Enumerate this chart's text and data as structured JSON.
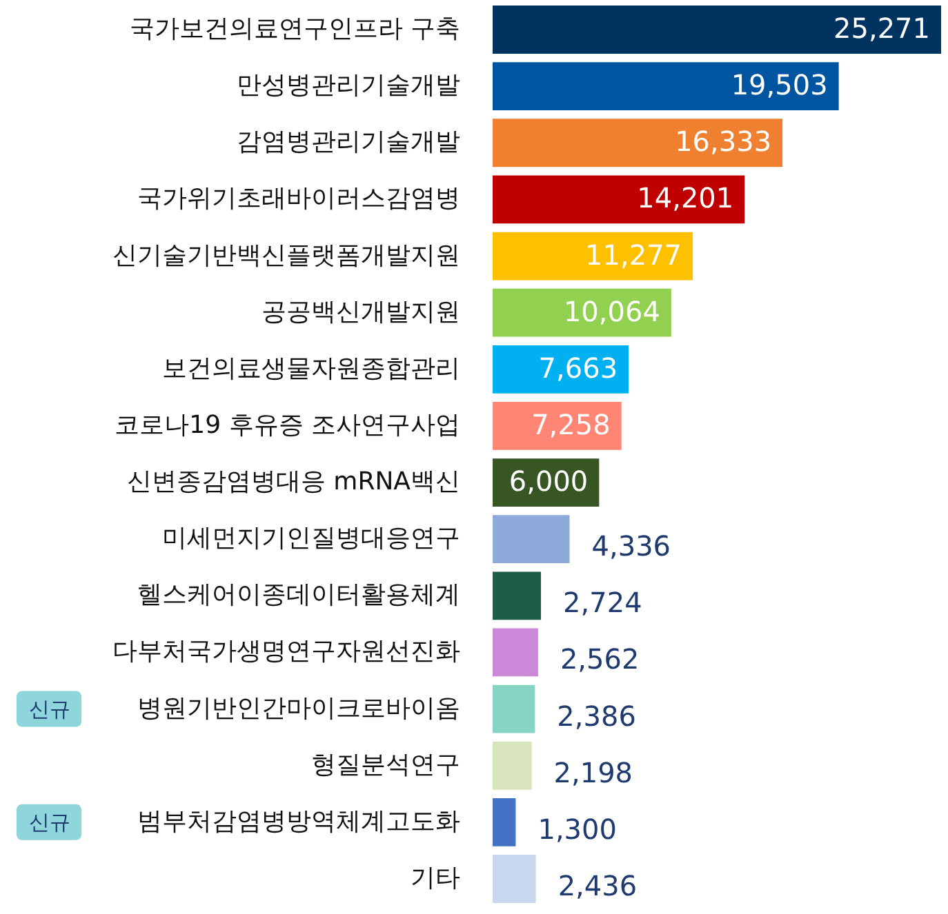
{
  "chart_data": {
    "type": "bar",
    "orientation": "horizontal",
    "categories": [
      "국가보건의료연구인프라 구축",
      "만성병관리기술개발",
      "감염병관리기술개발",
      "국가위기초래바이러스감염병",
      "신기술기반백신플랫폼개발지원",
      "공공백신개발지원",
      "보건의료생물자원종합관리",
      "코로나19 후유증 조사연구사업",
      "신변종감염병대응 mRNA백신",
      "미세먼지기인질병대응연구",
      "헬스케어이종데이터활용체계",
      "다부처국가생명연구자원선진화",
      "병원기반인간마이크로바이옴",
      "형질분석연구",
      "범부처감염병방역체계고도화",
      "기타"
    ],
    "values": [
      25271,
      19503,
      16333,
      14201,
      11277,
      10064,
      7663,
      7258,
      6000,
      4336,
      2724,
      2562,
      2386,
      2198,
      1300,
      2436
    ],
    "value_labels": [
      "25,271",
      "19,503",
      "16,333",
      "14,201",
      "11,277",
      "10,064",
      "7,663",
      "7,258",
      "6,000",
      "4,336",
      "2,724",
      "2,562",
      "2,386",
      "2,198",
      "1,300",
      "2,436"
    ],
    "colors": [
      "#00335f",
      "#0055a0",
      "#ee8030",
      "#c00000",
      "#ffc000",
      "#92d050",
      "#00b0f0",
      "#ff8575",
      "#375623",
      "#8eaadb",
      "#1f5c4a",
      "#cc88d8",
      "#88d4c4",
      "#d8e4bc",
      "#4472c4",
      "#c9d7ef"
    ],
    "annotations": [
      "신규",
      "신규"
    ]
  }
}
